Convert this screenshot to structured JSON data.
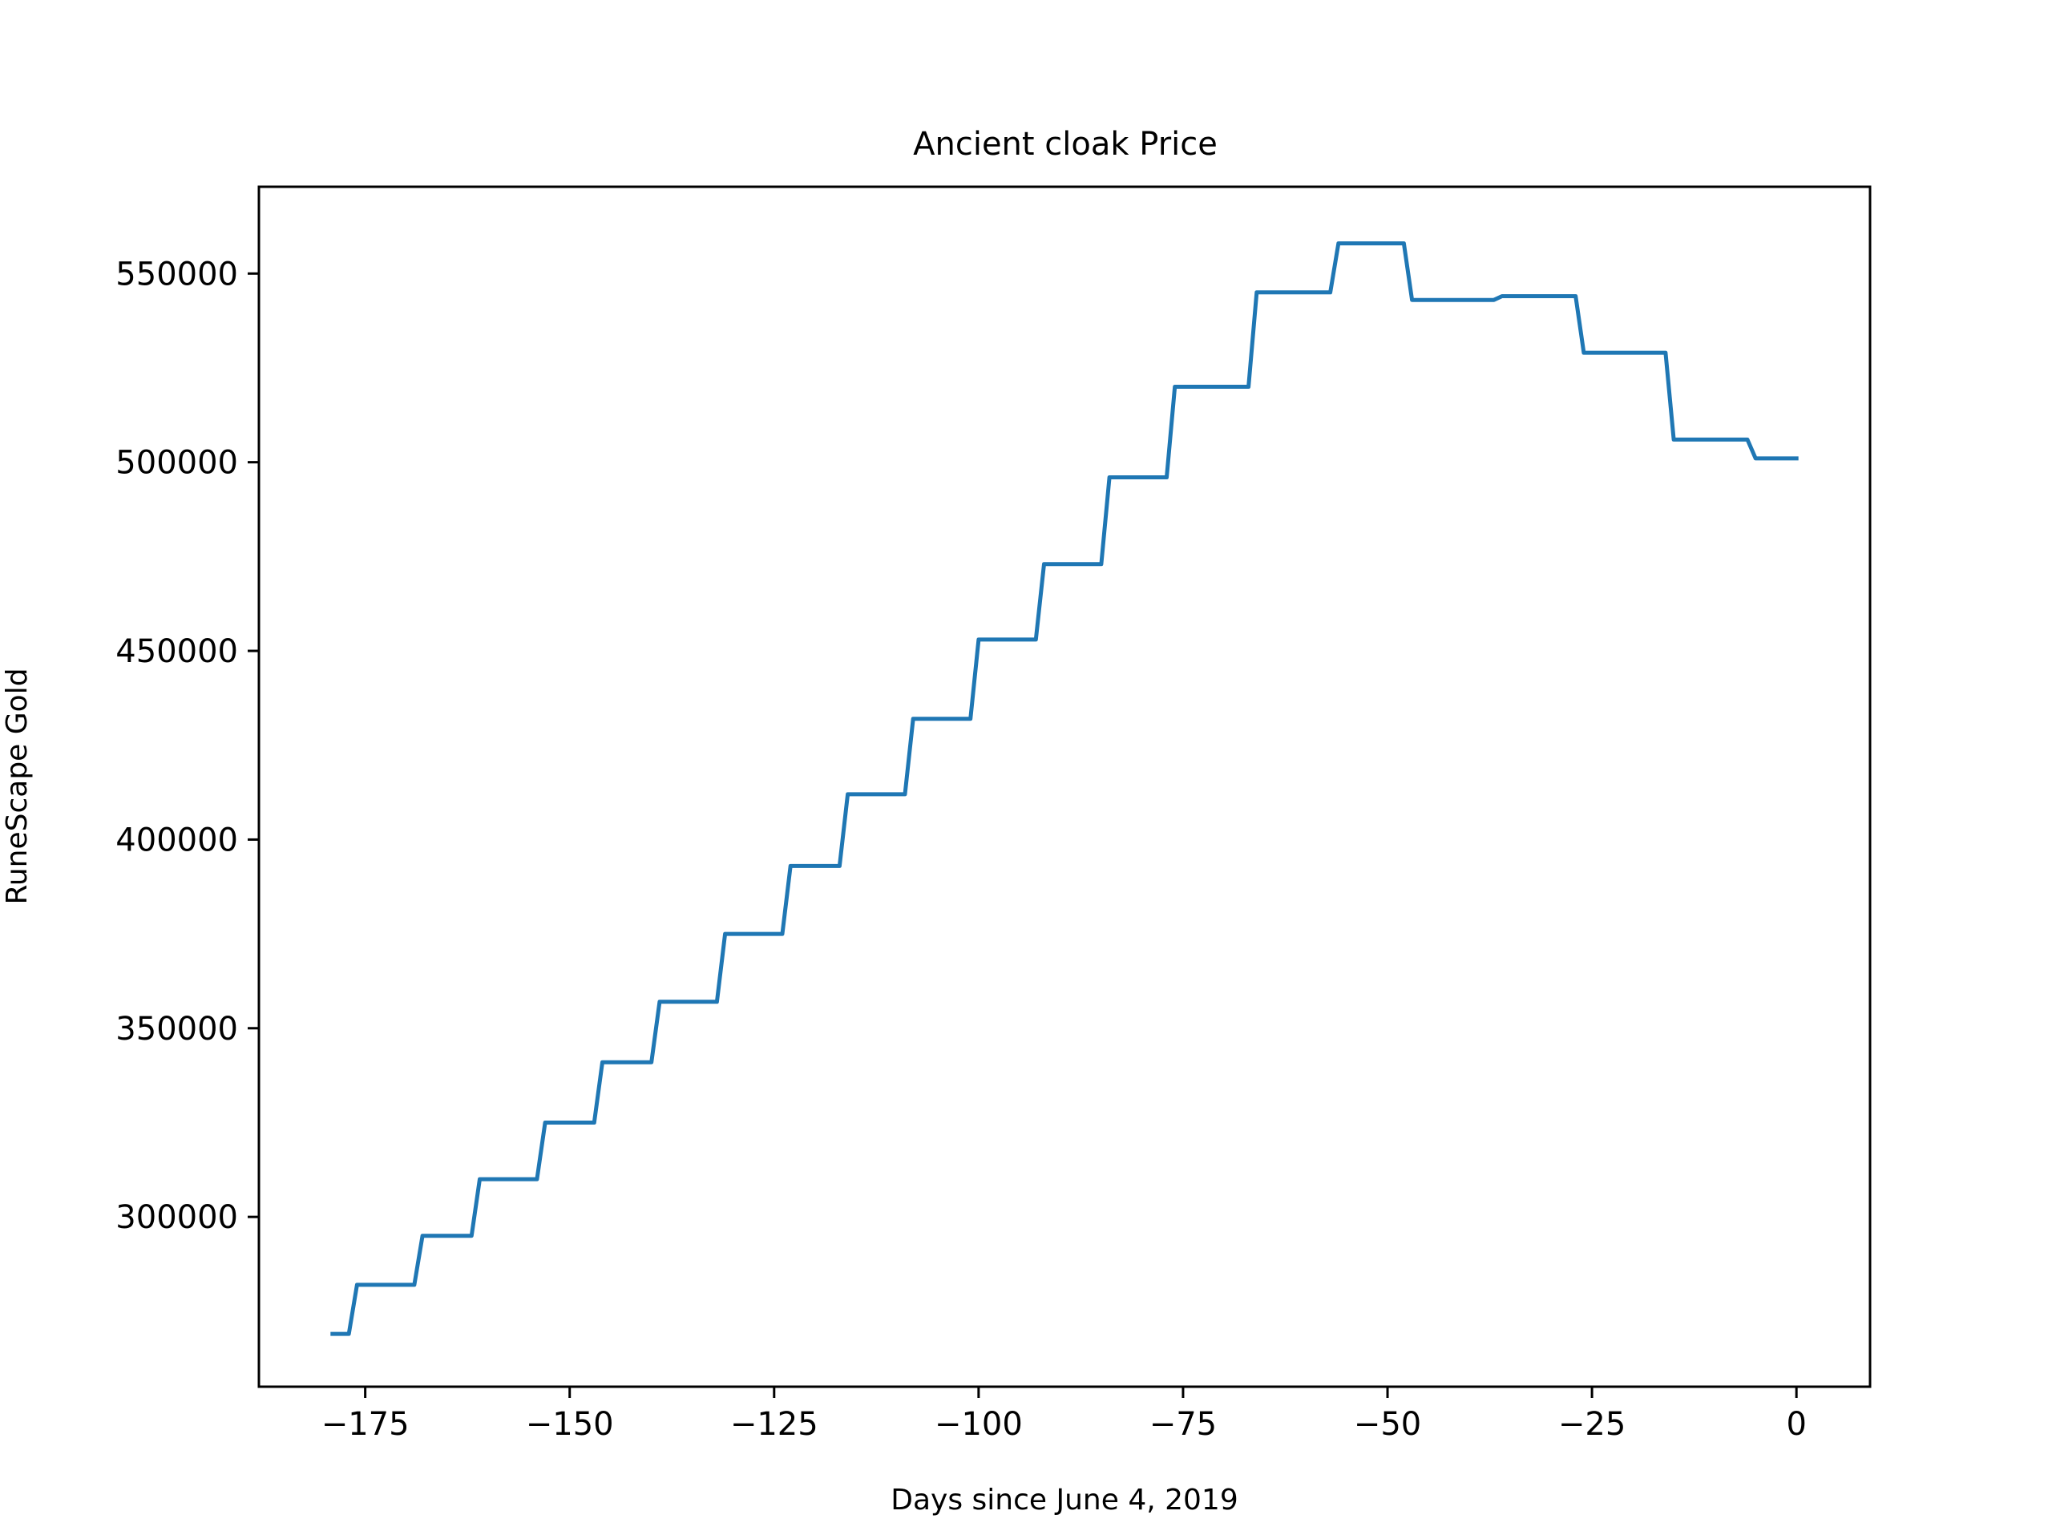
{
  "chart_data": {
    "type": "line",
    "title": "Ancient cloak Price",
    "xlabel": "Days since June 4, 2019",
    "ylabel": "RuneScape Gold",
    "xlim": [
      -188,
      9
    ],
    "ylim": [
      255000,
      573000
    ],
    "grid": false,
    "x_ticks": [
      -175,
      -150,
      -125,
      -100,
      -75,
      -50,
      -25,
      0
    ],
    "x_tick_labels": [
      "−175",
      "−150",
      "−125",
      "−100",
      "−75",
      "−50",
      "−25",
      "0"
    ],
    "y_ticks": [
      300000,
      350000,
      400000,
      450000,
      500000,
      550000
    ],
    "y_tick_labels": [
      "300000",
      "350000",
      "400000",
      "450000",
      "500000",
      "550000"
    ],
    "series": [
      {
        "color": "#1f77b4",
        "x": [
          -179,
          -177,
          -176,
          -169,
          -168,
          -162,
          -161,
          -154,
          -153,
          -147,
          -146,
          -140,
          -139,
          -132,
          -131,
          -124,
          -123,
          -117,
          -116,
          -109,
          -108,
          -101,
          -100,
          -93,
          -92,
          -85,
          -84,
          -77,
          -76,
          -67,
          -66,
          -57,
          -56,
          -48,
          -47,
          -37,
          -36,
          -27,
          -26,
          -16,
          -15,
          -6,
          -5,
          0
        ],
        "y": [
          269000,
          269000,
          282000,
          282000,
          295000,
          295000,
          310000,
          310000,
          325000,
          325000,
          341000,
          341000,
          357000,
          357000,
          375000,
          375000,
          393000,
          393000,
          412000,
          412000,
          432000,
          432000,
          453000,
          453000,
          473000,
          473000,
          496000,
          496000,
          520000,
          520000,
          545000,
          545000,
          558000,
          558000,
          543000,
          543000,
          544000,
          544000,
          529000,
          529000,
          506000,
          506000,
          501000,
          501000
        ]
      }
    ]
  }
}
